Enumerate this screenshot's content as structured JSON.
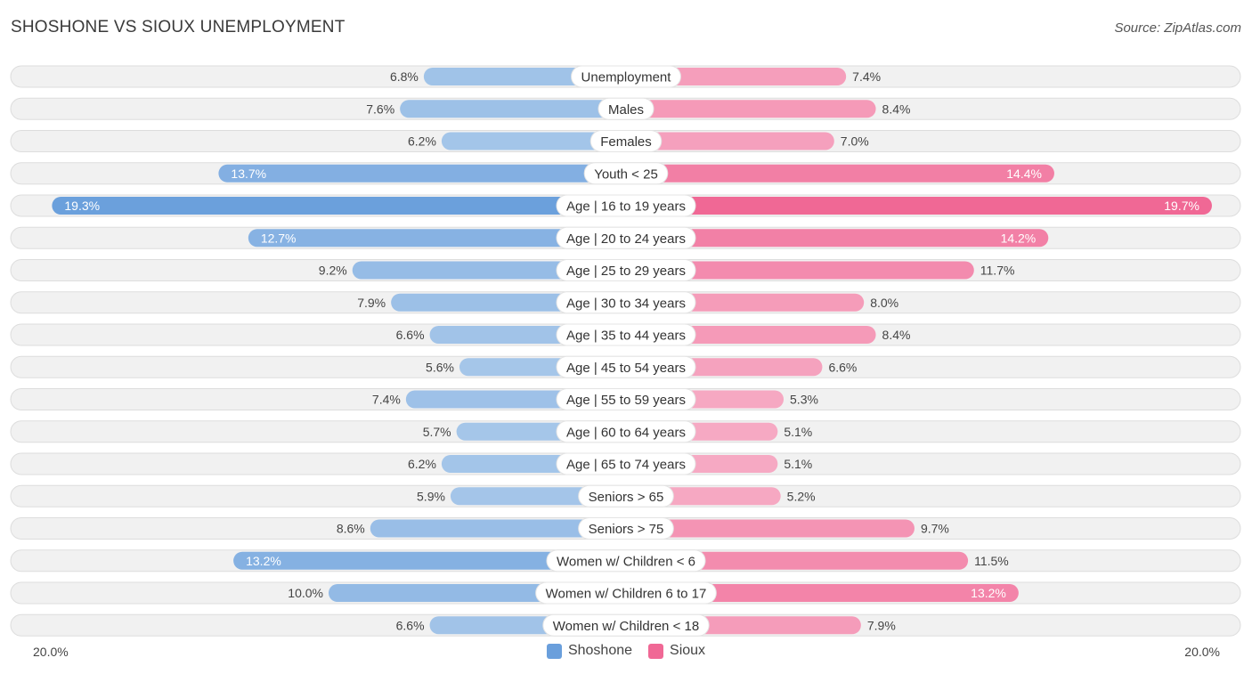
{
  "title": "SHOSHONE VS SIOUX UNEMPLOYMENT",
  "source": "Source: ZipAtlas.com",
  "colors": {
    "shoshone_light": "#a8c8ea",
    "shoshone_dark": "#6a9fdc",
    "sioux_light": "#f6a9c3",
    "sioux_dark": "#f06895",
    "row_bg": "#f1f1f1"
  },
  "legend": {
    "shoshone": "Shoshone",
    "sioux": "Sioux"
  },
  "axis": {
    "left_label": "20.0%",
    "right_label": "20.0%"
  },
  "chart_data": {
    "type": "bar",
    "orientation": "horizontal-diverging",
    "title": "SHOSHONE VS SIOUX UNEMPLOYMENT",
    "xlim": [
      -20,
      20
    ],
    "categories": [
      "Unemployment",
      "Males",
      "Females",
      "Youth < 25",
      "Age | 16 to 19 years",
      "Age | 20 to 24 years",
      "Age | 25 to 29 years",
      "Age | 30 to 34 years",
      "Age | 35 to 44 years",
      "Age | 45 to 54 years",
      "Age | 55 to 59 years",
      "Age | 60 to 64 years",
      "Age | 65 to 74 years",
      "Seniors > 65",
      "Seniors > 75",
      "Women w/ Children < 6",
      "Women w/ Children 6 to 17",
      "Women w/ Children < 18"
    ],
    "series": [
      {
        "name": "Shoshone",
        "values": [
          6.8,
          7.6,
          6.2,
          13.7,
          19.3,
          12.7,
          9.2,
          7.9,
          6.6,
          5.6,
          7.4,
          5.7,
          6.2,
          5.9,
          8.6,
          13.2,
          10.0,
          6.6
        ],
        "labels": [
          "6.8%",
          "7.6%",
          "6.2%",
          "13.7%",
          "19.3%",
          "12.7%",
          "9.2%",
          "7.9%",
          "6.6%",
          "5.6%",
          "7.4%",
          "5.7%",
          "6.2%",
          "5.9%",
          "8.6%",
          "13.2%",
          "10.0%",
          "6.6%"
        ]
      },
      {
        "name": "Sioux",
        "values": [
          7.4,
          8.4,
          7.0,
          14.4,
          19.7,
          14.2,
          11.7,
          8.0,
          8.4,
          6.6,
          5.3,
          5.1,
          5.1,
          5.2,
          9.7,
          11.5,
          13.2,
          7.9
        ],
        "labels": [
          "7.4%",
          "8.4%",
          "7.0%",
          "14.4%",
          "19.7%",
          "14.2%",
          "11.7%",
          "8.0%",
          "8.4%",
          "6.6%",
          "5.3%",
          "5.1%",
          "5.1%",
          "5.2%",
          "9.7%",
          "11.5%",
          "13.2%",
          "7.9%"
        ]
      }
    ]
  }
}
